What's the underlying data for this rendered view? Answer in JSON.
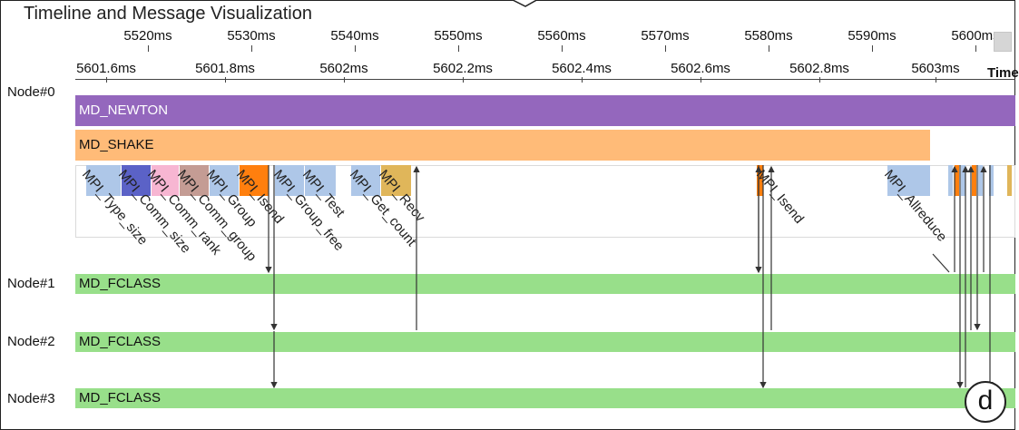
{
  "title": "Timeline and Message Visualization",
  "overview_axis": {
    "ticks": [
      "5520ms",
      "5530ms",
      "5540ms",
      "5550ms",
      "5560ms",
      "5570ms",
      "5580ms",
      "5590ms",
      "5600ms"
    ]
  },
  "detail_axis": {
    "ticks": [
      "5601.6ms",
      "5601.8ms",
      "5602ms",
      "5602.2ms",
      "5602.4ms",
      "5602.6ms",
      "5602.8ms",
      "5603ms"
    ],
    "label": "Time"
  },
  "nodes": [
    {
      "label": "Node#0",
      "bars": [
        {
          "label": "MD_NEWTON",
          "color": "#9467bd"
        },
        {
          "label": "MD_SHAKE",
          "color": "#ffbb78"
        }
      ]
    },
    {
      "label": "Node#1",
      "bars": [
        {
          "label": "MD_FCLASS",
          "color": "#98df8a"
        }
      ]
    },
    {
      "label": "Node#2",
      "bars": [
        {
          "label": "MD_FCLASS",
          "color": "#98df8a"
        }
      ]
    },
    {
      "label": "Node#3",
      "bars": [
        {
          "label": "MD_FCLASS",
          "color": "#98df8a"
        }
      ]
    }
  ],
  "mpi_calls": [
    {
      "label": "MPI_Type_size",
      "color": "#aec7e8"
    },
    {
      "label": "MPI_Comm_size",
      "color": "#5b62c7"
    },
    {
      "label": "MPI_Comm_rank",
      "color": "#f7b6d2"
    },
    {
      "label": "MPI_Comm_group",
      "color": "#c49c94"
    },
    {
      "label": "MPI_Group",
      "color": "#aec7e8"
    },
    {
      "label": "MPI_Isend",
      "color": "#ff7f0e"
    },
    {
      "label": "MPI_Group_free",
      "color": "#aec7e8"
    },
    {
      "label": "MPI_Test",
      "color": "#aec7e8"
    },
    {
      "label": "MPI_Get_count",
      "color": "#aec7e8"
    },
    {
      "label": "MPI_Recv",
      "color": "#e0b65a"
    },
    {
      "label": "MPI_Isend",
      "color": "#ff7f0e"
    },
    {
      "label": "MPI_Allreduce",
      "color": "#aec7e8"
    }
  ],
  "panel_badge": "d"
}
